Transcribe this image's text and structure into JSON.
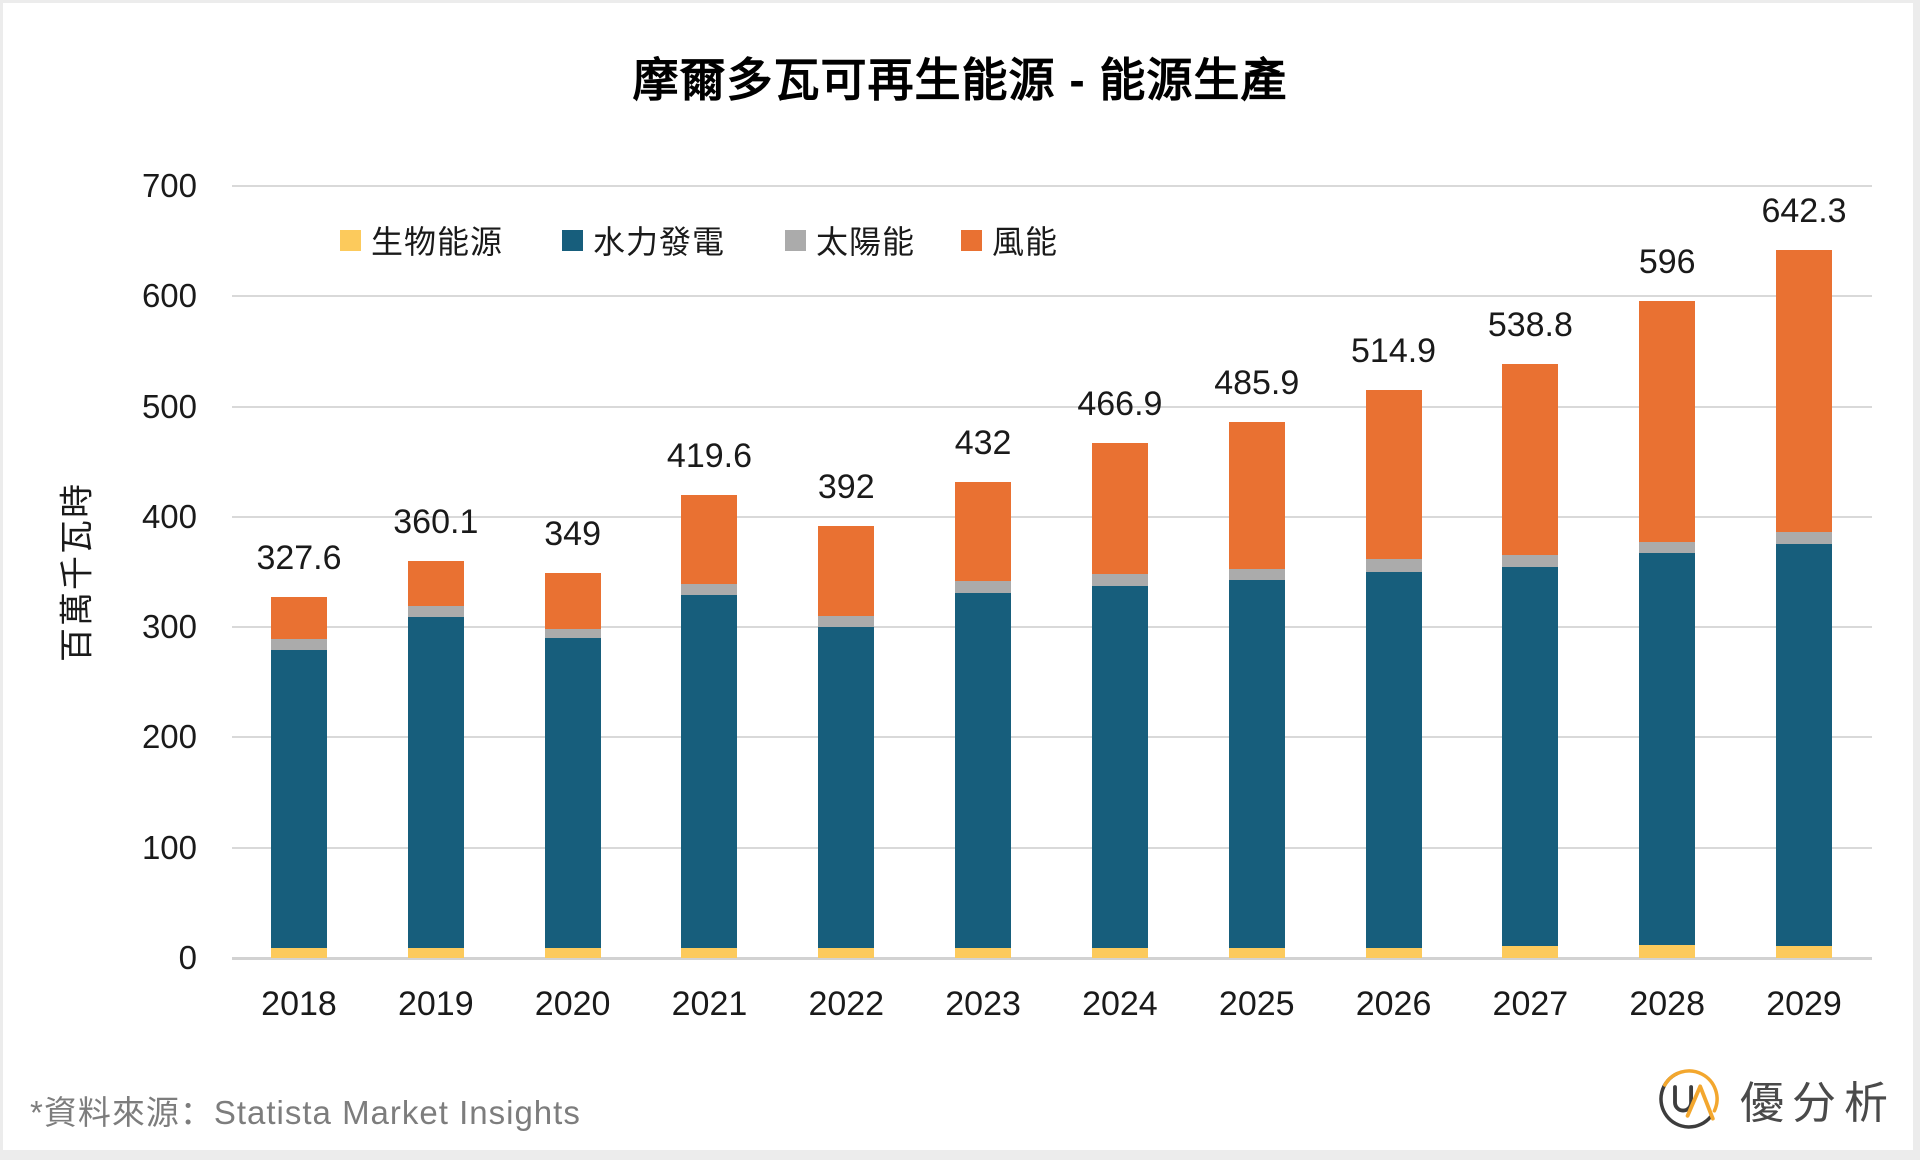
{
  "title": "摩爾多瓦可再生能源 - 能源生產",
  "y_axis": {
    "label": "百萬千瓦時",
    "ticks": [
      700,
      600,
      500,
      400,
      300,
      200,
      100,
      0
    ]
  },
  "legend": [
    {
      "key": "bioenergy",
      "label": "生物能源",
      "color": "#FCCA5C"
    },
    {
      "key": "hydro",
      "label": "水力發電",
      "color": "#175E7C"
    },
    {
      "key": "solar",
      "label": "太陽能",
      "color": "#ABABAB"
    },
    {
      "key": "wind",
      "label": "風能",
      "color": "#E97132"
    }
  ],
  "chart_data": {
    "type": "bar",
    "stacked": true,
    "title": "摩爾多瓦可再生能源 - 能源生產",
    "xlabel": "",
    "ylabel": "百萬千瓦時",
    "ylim": [
      0,
      700
    ],
    "grid": true,
    "legend_position": "top-left-inside",
    "categories": [
      "2018",
      "2019",
      "2020",
      "2021",
      "2022",
      "2023",
      "2024",
      "2025",
      "2026",
      "2027",
      "2028",
      "2029"
    ],
    "series": [
      {
        "key": "bioenergy",
        "name": "生物能源",
        "color": "#FCCA5C",
        "values": [
          9.4,
          9.4,
          9.4,
          9.4,
          9.4,
          9.4,
          9.4,
          9.4,
          9.4,
          11.2,
          11.4,
          11.3
        ]
      },
      {
        "key": "hydro",
        "name": "水力發電",
        "color": "#175E7C",
        "values": [
          270.0,
          300.0,
          280.7,
          319.5,
          290.7,
          321.8,
          327.6,
          333.0,
          340.8,
          343.3,
          356.1,
          364.3
        ]
      },
      {
        "key": "solar",
        "name": "太陽能",
        "color": "#ABABAB",
        "values": [
          9.7,
          9.8,
          8.0,
          9.9,
          10.0,
          10.6,
          11.4,
          10.6,
          11.3,
          10.9,
          9.9,
          10.9
        ]
      },
      {
        "key": "wind",
        "name": "風能",
        "color": "#E97132",
        "values": [
          38.5,
          40.9,
          50.9,
          80.8,
          81.9,
          90.2,
          118.5,
          132.9,
          153.4,
          173.4,
          218.6,
          255.8
        ]
      }
    ],
    "totals": [
      327.6,
      360.1,
      349,
      419.6,
      392,
      432,
      466.9,
      485.9,
      514.9,
      538.8,
      596,
      642.3
    ],
    "totals_display": [
      "327.6",
      "360.1",
      "349",
      "419.6",
      "392",
      "432",
      "466.9",
      "485.9",
      "514.9",
      "538.8",
      "596",
      "642.3"
    ]
  },
  "footer": {
    "source": "*資料來源：Statista Market Insights",
    "brand": "優分析",
    "logo_monogram": "UA"
  },
  "colors": {
    "bioenergy": "#FCCA5C",
    "hydro": "#175E7C",
    "solar": "#ABABAB",
    "wind": "#E97132",
    "gridline": "#D9D9D9",
    "logo_orange": "#F3A72E",
    "logo_dark": "#3D3D3D"
  }
}
